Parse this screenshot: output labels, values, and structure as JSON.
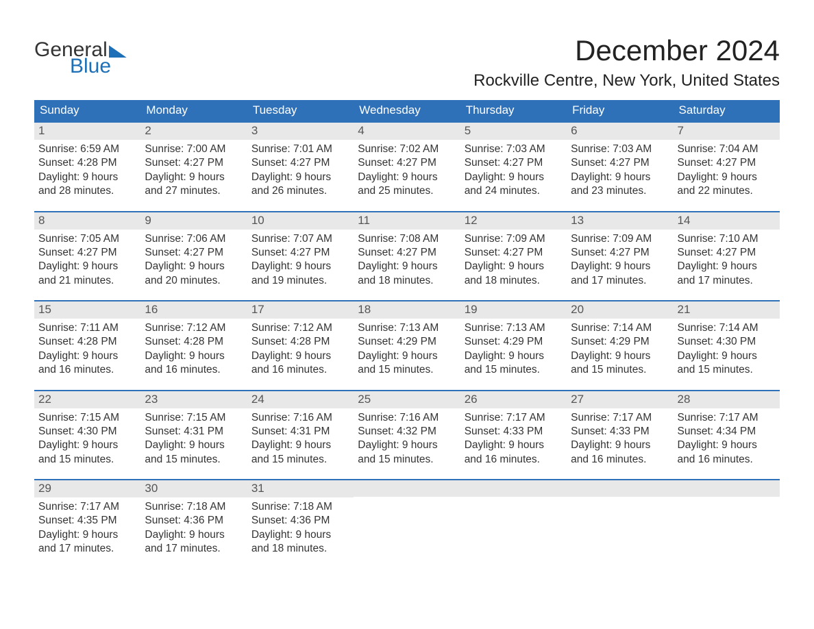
{
  "logo": {
    "word1": "General",
    "word2": "Blue"
  },
  "title": "December 2024",
  "location": "Rockville Centre, New York, United States",
  "days_of_week": [
    "Sunday",
    "Monday",
    "Tuesday",
    "Wednesday",
    "Thursday",
    "Friday",
    "Saturday"
  ],
  "labels": {
    "sunrise": "Sunrise:",
    "sunset": "Sunset:",
    "daylight": "Daylight:"
  },
  "colors": {
    "brand_blue": "#1d70b7",
    "header_blue": "#2f71b8",
    "daynum_bg": "#e8e8e8",
    "text": "#333333",
    "background": "#ffffff"
  },
  "weeks": [
    [
      {
        "n": "1",
        "sunrise": "6:59 AM",
        "sunset": "4:28 PM",
        "dl1": "9 hours",
        "dl2": "and 28 minutes."
      },
      {
        "n": "2",
        "sunrise": "7:00 AM",
        "sunset": "4:27 PM",
        "dl1": "9 hours",
        "dl2": "and 27 minutes."
      },
      {
        "n": "3",
        "sunrise": "7:01 AM",
        "sunset": "4:27 PM",
        "dl1": "9 hours",
        "dl2": "and 26 minutes."
      },
      {
        "n": "4",
        "sunrise": "7:02 AM",
        "sunset": "4:27 PM",
        "dl1": "9 hours",
        "dl2": "and 25 minutes."
      },
      {
        "n": "5",
        "sunrise": "7:03 AM",
        "sunset": "4:27 PM",
        "dl1": "9 hours",
        "dl2": "and 24 minutes."
      },
      {
        "n": "6",
        "sunrise": "7:03 AM",
        "sunset": "4:27 PM",
        "dl1": "9 hours",
        "dl2": "and 23 minutes."
      },
      {
        "n": "7",
        "sunrise": "7:04 AM",
        "sunset": "4:27 PM",
        "dl1": "9 hours",
        "dl2": "and 22 minutes."
      }
    ],
    [
      {
        "n": "8",
        "sunrise": "7:05 AM",
        "sunset": "4:27 PM",
        "dl1": "9 hours",
        "dl2": "and 21 minutes."
      },
      {
        "n": "9",
        "sunrise": "7:06 AM",
        "sunset": "4:27 PM",
        "dl1": "9 hours",
        "dl2": "and 20 minutes."
      },
      {
        "n": "10",
        "sunrise": "7:07 AM",
        "sunset": "4:27 PM",
        "dl1": "9 hours",
        "dl2": "and 19 minutes."
      },
      {
        "n": "11",
        "sunrise": "7:08 AM",
        "sunset": "4:27 PM",
        "dl1": "9 hours",
        "dl2": "and 18 minutes."
      },
      {
        "n": "12",
        "sunrise": "7:09 AM",
        "sunset": "4:27 PM",
        "dl1": "9 hours",
        "dl2": "and 18 minutes."
      },
      {
        "n": "13",
        "sunrise": "7:09 AM",
        "sunset": "4:27 PM",
        "dl1": "9 hours",
        "dl2": "and 17 minutes."
      },
      {
        "n": "14",
        "sunrise": "7:10 AM",
        "sunset": "4:27 PM",
        "dl1": "9 hours",
        "dl2": "and 17 minutes."
      }
    ],
    [
      {
        "n": "15",
        "sunrise": "7:11 AM",
        "sunset": "4:28 PM",
        "dl1": "9 hours",
        "dl2": "and 16 minutes."
      },
      {
        "n": "16",
        "sunrise": "7:12 AM",
        "sunset": "4:28 PM",
        "dl1": "9 hours",
        "dl2": "and 16 minutes."
      },
      {
        "n": "17",
        "sunrise": "7:12 AM",
        "sunset": "4:28 PM",
        "dl1": "9 hours",
        "dl2": "and 16 minutes."
      },
      {
        "n": "18",
        "sunrise": "7:13 AM",
        "sunset": "4:29 PM",
        "dl1": "9 hours",
        "dl2": "and 15 minutes."
      },
      {
        "n": "19",
        "sunrise": "7:13 AM",
        "sunset": "4:29 PM",
        "dl1": "9 hours",
        "dl2": "and 15 minutes."
      },
      {
        "n": "20",
        "sunrise": "7:14 AM",
        "sunset": "4:29 PM",
        "dl1": "9 hours",
        "dl2": "and 15 minutes."
      },
      {
        "n": "21",
        "sunrise": "7:14 AM",
        "sunset": "4:30 PM",
        "dl1": "9 hours",
        "dl2": "and 15 minutes."
      }
    ],
    [
      {
        "n": "22",
        "sunrise": "7:15 AM",
        "sunset": "4:30 PM",
        "dl1": "9 hours",
        "dl2": "and 15 minutes."
      },
      {
        "n": "23",
        "sunrise": "7:15 AM",
        "sunset": "4:31 PM",
        "dl1": "9 hours",
        "dl2": "and 15 minutes."
      },
      {
        "n": "24",
        "sunrise": "7:16 AM",
        "sunset": "4:31 PM",
        "dl1": "9 hours",
        "dl2": "and 15 minutes."
      },
      {
        "n": "25",
        "sunrise": "7:16 AM",
        "sunset": "4:32 PM",
        "dl1": "9 hours",
        "dl2": "and 15 minutes."
      },
      {
        "n": "26",
        "sunrise": "7:17 AM",
        "sunset": "4:33 PM",
        "dl1": "9 hours",
        "dl2": "and 16 minutes."
      },
      {
        "n": "27",
        "sunrise": "7:17 AM",
        "sunset": "4:33 PM",
        "dl1": "9 hours",
        "dl2": "and 16 minutes."
      },
      {
        "n": "28",
        "sunrise": "7:17 AM",
        "sunset": "4:34 PM",
        "dl1": "9 hours",
        "dl2": "and 16 minutes."
      }
    ],
    [
      {
        "n": "29",
        "sunrise": "7:17 AM",
        "sunset": "4:35 PM",
        "dl1": "9 hours",
        "dl2": "and 17 minutes."
      },
      {
        "n": "30",
        "sunrise": "7:18 AM",
        "sunset": "4:36 PM",
        "dl1": "9 hours",
        "dl2": "and 17 minutes."
      },
      {
        "n": "31",
        "sunrise": "7:18 AM",
        "sunset": "4:36 PM",
        "dl1": "9 hours",
        "dl2": "and 18 minutes."
      },
      null,
      null,
      null,
      null
    ]
  ]
}
